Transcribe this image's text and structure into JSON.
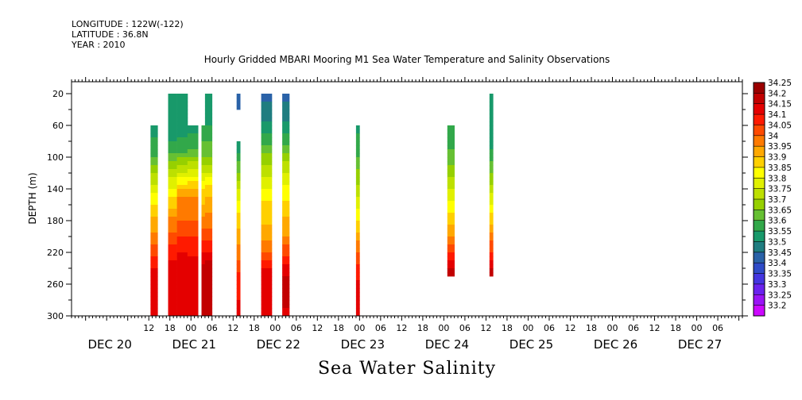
{
  "header": {
    "longitude": "LONGITUDE : 122W(-122)",
    "latitude": "LATITUDE : 36.8N",
    "year": "YEAR : 2010"
  },
  "chart_data": {
    "type": "heatmap",
    "title": "Hourly Gridded MBARI Mooring M1 Sea Water Temperature and Salinity Observations",
    "xlabel": "Sea Water Salinity",
    "ylabel": "DEPTH (m)",
    "x_unit": "hours from DEC 20 00:00, 2010",
    "xlim": [
      -10,
      181
    ],
    "ylim": [
      300,
      5
    ],
    "y_ticks": [
      20,
      60,
      100,
      140,
      180,
      220,
      260,
      300
    ],
    "x_hour_ticks": [
      {
        "h": 12,
        "label": "12"
      },
      {
        "h": 18,
        "label": "18"
      },
      {
        "h": 24,
        "label": "00"
      },
      {
        "h": 30,
        "label": "06"
      },
      {
        "h": 36,
        "label": "12"
      },
      {
        "h": 42,
        "label": "18"
      },
      {
        "h": 48,
        "label": "00"
      },
      {
        "h": 54,
        "label": "06"
      },
      {
        "h": 60,
        "label": "12"
      },
      {
        "h": 66,
        "label": "18"
      },
      {
        "h": 72,
        "label": "00"
      },
      {
        "h": 78,
        "label": "06"
      },
      {
        "h": 84,
        "label": "12"
      },
      {
        "h": 90,
        "label": "18"
      },
      {
        "h": 96,
        "label": "00"
      },
      {
        "h": 102,
        "label": "06"
      },
      {
        "h": 108,
        "label": "12"
      },
      {
        "h": 114,
        "label": "18"
      },
      {
        "h": 120,
        "label": "00"
      },
      {
        "h": 126,
        "label": "06"
      },
      {
        "h": 132,
        "label": "12"
      },
      {
        "h": 138,
        "label": "18"
      },
      {
        "h": 144,
        "label": "00"
      },
      {
        "h": 150,
        "label": "06"
      },
      {
        "h": 156,
        "label": "12"
      },
      {
        "h": 162,
        "label": "18"
      },
      {
        "h": 168,
        "label": "00"
      },
      {
        "h": 174,
        "label": "06"
      }
    ],
    "x_day_labels": [
      {
        "h": 0,
        "label": "DEC 20"
      },
      {
        "h": 24,
        "label": "DEC 21"
      },
      {
        "h": 48,
        "label": "DEC 22"
      },
      {
        "h": 72,
        "label": "DEC 23"
      },
      {
        "h": 96,
        "label": "DEC 24"
      },
      {
        "h": 120,
        "label": "DEC 25"
      },
      {
        "h": 144,
        "label": "DEC 26"
      },
      {
        "h": 168,
        "label": "DEC 27"
      }
    ],
    "colorbar": {
      "levels": [
        34.25,
        34.2,
        34.15,
        34.1,
        34.05,
        34,
        33.95,
        33.9,
        33.85,
        33.8,
        33.75,
        33.7,
        33.65,
        33.6,
        33.55,
        33.5,
        33.45,
        33.4,
        33.35,
        33.3,
        33.25,
        33.2
      ],
      "colors": [
        "#9b0000",
        "#c20000",
        "#e40000",
        "#ff1a00",
        "#ff4a00",
        "#ff7a00",
        "#ffa800",
        "#ffd000",
        "#ffff00",
        "#e0f000",
        "#bde000",
        "#96d000",
        "#66c033",
        "#32a84a",
        "#18996a",
        "#1f7d80",
        "#2a62a8",
        "#2f4bc8",
        "#4435e0",
        "#6a22ee",
        "#9a14f6",
        "#cc08ff"
      ]
    },
    "columns": [
      {
        "x0": 12.5,
        "x1": 14.5,
        "top": 60,
        "bottom": 300,
        "profile": [
          [
            60,
            33.52
          ],
          [
            100,
            33.6
          ],
          [
            140,
            33.78
          ],
          [
            170,
            33.88
          ],
          [
            200,
            33.97
          ],
          [
            230,
            34.07
          ],
          [
            250,
            34.12
          ],
          [
            300,
            34.12
          ]
        ]
      },
      {
        "x0": 17.5,
        "x1": 20.0,
        "top": 20,
        "bottom": 300,
        "profile": [
          [
            20,
            33.5
          ],
          [
            60,
            33.5
          ],
          [
            90,
            33.58
          ],
          [
            120,
            33.72
          ],
          [
            150,
            33.85
          ],
          [
            180,
            33.96
          ],
          [
            210,
            34.05
          ],
          [
            240,
            34.12
          ],
          [
            300,
            34.12
          ]
        ]
      },
      {
        "x0": 20.0,
        "x1": 23.0,
        "top": 20,
        "bottom": 300,
        "profile": [
          [
            20,
            33.5
          ],
          [
            60,
            33.52
          ],
          [
            90,
            33.58
          ],
          [
            120,
            33.76
          ],
          [
            150,
            33.95
          ],
          [
            180,
            34.0
          ],
          [
            210,
            34.08
          ],
          [
            240,
            34.13
          ],
          [
            300,
            34.12
          ]
        ]
      },
      {
        "x0": 23.0,
        "x1": 26.0,
        "top": 60,
        "bottom": 300,
        "profile": [
          [
            60,
            33.52
          ],
          [
            90,
            33.6
          ],
          [
            120,
            33.78
          ],
          [
            150,
            33.96
          ],
          [
            180,
            34.0
          ],
          [
            210,
            34.07
          ],
          [
            240,
            34.13
          ],
          [
            300,
            34.12
          ]
        ]
      },
      {
        "x0": 27.0,
        "x1": 28.0,
        "top": 60,
        "bottom": 300,
        "profile": [
          [
            60,
            33.55
          ],
          [
            100,
            33.65
          ],
          [
            140,
            33.85
          ],
          [
            180,
            33.96
          ],
          [
            210,
            34.06
          ],
          [
            240,
            34.16
          ],
          [
            260,
            34.2
          ],
          [
            300,
            34.17
          ]
        ]
      },
      {
        "x0": 28.0,
        "x1": 30.0,
        "top": 20,
        "bottom": 300,
        "profile": [
          [
            20,
            33.5
          ],
          [
            60,
            33.55
          ],
          [
            100,
            33.65
          ],
          [
            140,
            33.87
          ],
          [
            180,
            33.97
          ],
          [
            210,
            34.07
          ],
          [
            240,
            34.18
          ],
          [
            260,
            34.2
          ],
          [
            300,
            34.17
          ]
        ]
      },
      {
        "x0": 37.0,
        "x1": 38.0,
        "top": 20,
        "bottom": 40,
        "profile": [
          [
            20,
            33.43
          ],
          [
            40,
            33.43
          ]
        ]
      },
      {
        "x0": 37.0,
        "x1": 38.0,
        "top": 80,
        "bottom": 300,
        "profile": [
          [
            80,
            33.5
          ],
          [
            100,
            33.57
          ],
          [
            140,
            33.75
          ],
          [
            180,
            33.88
          ],
          [
            220,
            33.97
          ],
          [
            250,
            34.07
          ],
          [
            300,
            34.12
          ]
        ]
      },
      {
        "x0": 44.0,
        "x1": 47.0,
        "top": 20,
        "bottom": 300,
        "profile": [
          [
            20,
            33.43
          ],
          [
            50,
            33.48
          ],
          [
            80,
            33.58
          ],
          [
            120,
            33.74
          ],
          [
            160,
            33.86
          ],
          [
            200,
            33.92
          ],
          [
            220,
            34.0
          ],
          [
            250,
            34.14
          ],
          [
            300,
            34.12
          ]
        ]
      },
      {
        "x0": 50.0,
        "x1": 52.0,
        "top": 20,
        "bottom": 300,
        "profile": [
          [
            20,
            33.43
          ],
          [
            50,
            33.48
          ],
          [
            80,
            33.58
          ],
          [
            120,
            33.76
          ],
          [
            160,
            33.87
          ],
          [
            200,
            33.95
          ],
          [
            220,
            34.03
          ],
          [
            250,
            34.15
          ],
          [
            260,
            34.18
          ],
          [
            300,
            34.14
          ]
        ]
      },
      {
        "x0": 71.0,
        "x1": 72.0,
        "top": 60,
        "bottom": 300,
        "profile": [
          [
            60,
            33.53
          ],
          [
            100,
            33.6
          ],
          [
            140,
            33.72
          ],
          [
            180,
            33.85
          ],
          [
            220,
            34.0
          ],
          [
            240,
            34.06
          ],
          [
            260,
            34.12
          ],
          [
            300,
            34.12
          ]
        ]
      },
      {
        "x0": 97.0,
        "x1": 99.0,
        "top": 60,
        "bottom": 250,
        "profile": [
          [
            60,
            33.55
          ],
          [
            100,
            33.62
          ],
          [
            140,
            33.75
          ],
          [
            180,
            33.88
          ],
          [
            200,
            33.95
          ],
          [
            220,
            34.05
          ],
          [
            240,
            34.15
          ],
          [
            250,
            34.2
          ]
        ]
      },
      {
        "x0": 109.0,
        "x1": 110.0,
        "top": 20,
        "bottom": 250,
        "profile": [
          [
            20,
            33.5
          ],
          [
            80,
            33.52
          ],
          [
            120,
            33.65
          ],
          [
            160,
            33.8
          ],
          [
            190,
            33.93
          ],
          [
            220,
            34.05
          ],
          [
            240,
            34.15
          ],
          [
            250,
            34.2
          ]
        ]
      }
    ]
  }
}
